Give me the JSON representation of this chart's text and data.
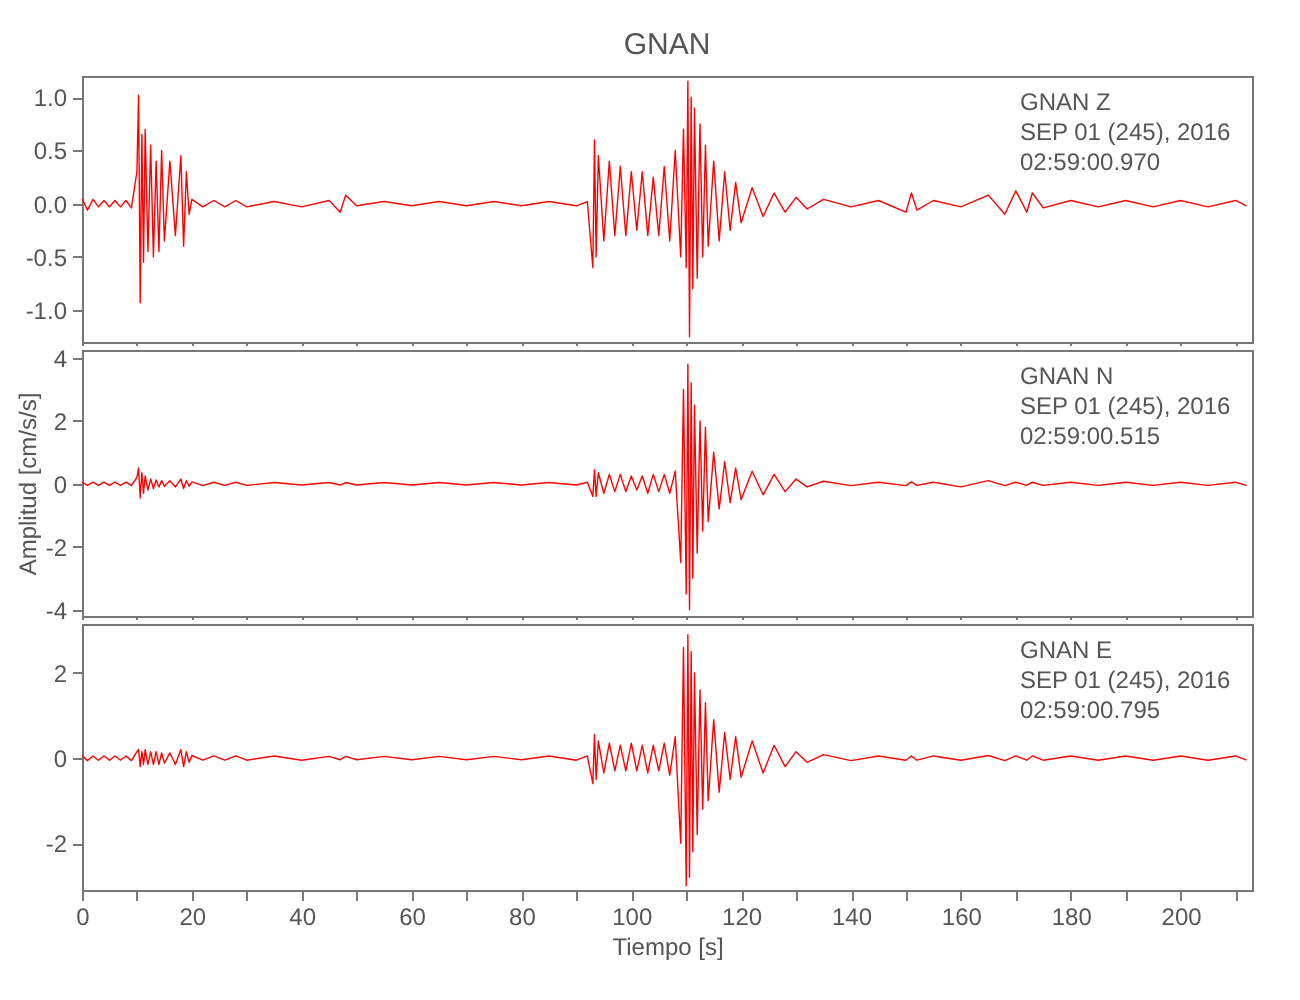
{
  "chart_data": [
    {
      "type": "line",
      "title": "GNAN",
      "annotations": [
        "GNAN   Z",
        "SEP 01 (245), 2016",
        "02:59:00.970"
      ],
      "tick_labels": "y",
      "xlim": [
        0,
        213
      ],
      "xticks": [
        0,
        {
          "value": 10,
          "label": null
        },
        {
          "value": 20,
          "label": null
        },
        {
          "value": 30,
          "label": null
        },
        {
          "value": 40,
          "label": null
        },
        {
          "value": 50,
          "label": null
        },
        {
          "value": 60,
          "label": null
        },
        {
          "value": 70,
          "label": null
        },
        {
          "value": 80,
          "label": null
        },
        {
          "value": 90,
          "label": null
        },
        {
          "value": 100,
          "label": null
        },
        {
          "value": 110,
          "label": null
        },
        {
          "value": 120,
          "label": null
        },
        {
          "value": 130,
          "label": null
        },
        {
          "value": 140,
          "label": null
        },
        {
          "value": 150,
          "label": null
        },
        {
          "value": 160,
          "label": null
        },
        {
          "value": 170,
          "label": null
        },
        {
          "value": 180,
          "label": null
        },
        {
          "value": 190,
          "label": null
        },
        {
          "value": 200,
          "label": null
        },
        {
          "value": 210,
          "label": null
        }
      ],
      "ylim": [
        -1.3,
        1.2
      ],
      "yticks": [
        {
          "value": -1,
          "label": "-1.0"
        },
        -0.5,
        {
          "value": 0,
          "label": "0.0"
        },
        0.5,
        {
          "value": 1,
          "label": "1.0"
        }
      ],
      "x": [
        0,
        1,
        2,
        3,
        4,
        5,
        6,
        7,
        8,
        9,
        10,
        10.3,
        10.6,
        10.9,
        11.2,
        11.5,
        12,
        12.5,
        13,
        13.5,
        14,
        14.5,
        15,
        16,
        17,
        18,
        18.5,
        19,
        19.5,
        20,
        22,
        24,
        26,
        28,
        30,
        35,
        40,
        45,
        47,
        48,
        50,
        55,
        60,
        65,
        70,
        75,
        80,
        85,
        90,
        92,
        93,
        93.3,
        93.6,
        94,
        95,
        96,
        97,
        98,
        99,
        100,
        101,
        102,
        103,
        104,
        105,
        106,
        107,
        108,
        109,
        109.5,
        110,
        110.3,
        110.6,
        110.9,
        111.2,
        111.5,
        112,
        112.5,
        113,
        113.5,
        114,
        115,
        116,
        117,
        118,
        119,
        120,
        122,
        124,
        126,
        128,
        130,
        132,
        135,
        140,
        145,
        150,
        151,
        152,
        155,
        160,
        165,
        168,
        170,
        172,
        173,
        175,
        180,
        185,
        190,
        195,
        200,
        205,
        210,
        212
      ],
      "series": [
        {
          "color": "#ff0000",
          "values": [
            0.05,
            -0.06,
            0.04,
            -0.03,
            0.03,
            -0.03,
            0.03,
            -0.03,
            0.03,
            -0.04,
            0.3,
            1.02,
            -0.93,
            0.65,
            -0.55,
            0.7,
            -0.45,
            0.55,
            -0.5,
            0.4,
            -0.45,
            0.5,
            -0.35,
            0.4,
            -0.3,
            0.45,
            -0.4,
            0.3,
            -0.1,
            0.04,
            -0.03,
            0.03,
            -0.03,
            0.03,
            -0.03,
            0.02,
            -0.03,
            0.03,
            -0.08,
            0.08,
            -0.02,
            0.02,
            -0.02,
            0.02,
            -0.02,
            0.02,
            -0.02,
            0.02,
            -0.02,
            0.02,
            -0.6,
            0.6,
            -0.5,
            0.45,
            -0.35,
            0.4,
            -0.3,
            0.35,
            -0.3,
            0.3,
            -0.25,
            0.3,
            -0.3,
            0.25,
            -0.3,
            0.35,
            -0.35,
            0.5,
            -0.5,
            0.7,
            -0.6,
            1.15,
            -1.25,
            1.0,
            -0.8,
            0.9,
            -0.7,
            0.75,
            -0.5,
            0.55,
            -0.4,
            0.4,
            -0.35,
            0.3,
            -0.25,
            0.2,
            -0.18,
            0.15,
            -0.12,
            0.1,
            -0.08,
            0.06,
            -0.05,
            0.04,
            -0.03,
            0.03,
            -0.08,
            0.1,
            -0.06,
            0.03,
            -0.03,
            0.08,
            -0.1,
            0.12,
            -0.08,
            0.1,
            -0.04,
            0.03,
            -0.03,
            0.03,
            -0.03,
            0.03,
            -0.03,
            0.03,
            -0.02
          ]
        }
      ]
    },
    {
      "type": "line",
      "ylabel": "Amplitud [cm/s/s]",
      "annotations": [
        "GNAN   N",
        "SEP 01 (245), 2016",
        "02:59:00.515"
      ],
      "tick_labels": "y",
      "xlim": [
        0,
        213
      ],
      "xticks": [
        0,
        {
          "value": 10,
          "label": null
        },
        {
          "value": 20,
          "label": null
        },
        {
          "value": 30,
          "label": null
        },
        {
          "value": 40,
          "label": null
        },
        {
          "value": 50,
          "label": null
        },
        {
          "value": 60,
          "label": null
        },
        {
          "value": 70,
          "label": null
        },
        {
          "value": 80,
          "label": null
        },
        {
          "value": 90,
          "label": null
        },
        {
          "value": 100,
          "label": null
        },
        {
          "value": 110,
          "label": null
        },
        {
          "value": 120,
          "label": null
        },
        {
          "value": 130,
          "label": null
        },
        {
          "value": 140,
          "label": null
        },
        {
          "value": 150,
          "label": null
        },
        {
          "value": 160,
          "label": null
        },
        {
          "value": 170,
          "label": null
        },
        {
          "value": 180,
          "label": null
        },
        {
          "value": 190,
          "label": null
        },
        {
          "value": 200,
          "label": null
        },
        {
          "value": 210,
          "label": null
        }
      ],
      "ylim": [
        -4.2,
        4.25
      ],
      "yticks": [
        -4,
        -2,
        0,
        2,
        4
      ],
      "x": [
        0,
        1,
        2,
        3,
        4,
        5,
        6,
        7,
        8,
        9,
        10,
        10.3,
        10.6,
        10.9,
        11.2,
        11.5,
        12,
        12.5,
        13,
        13.5,
        14,
        14.5,
        15,
        16,
        17,
        18,
        18.5,
        19,
        19.5,
        20,
        22,
        24,
        26,
        28,
        30,
        35,
        40,
        45,
        47,
        48,
        50,
        55,
        60,
        65,
        70,
        75,
        80,
        85,
        90,
        92,
        93,
        93.3,
        93.6,
        94,
        95,
        96,
        97,
        98,
        99,
        100,
        101,
        102,
        103,
        104,
        105,
        106,
        107,
        108,
        109,
        109.5,
        110,
        110.3,
        110.6,
        110.9,
        111.2,
        111.5,
        112,
        112.5,
        113,
        113.5,
        114,
        115,
        116,
        117,
        118,
        119,
        120,
        122,
        124,
        126,
        128,
        130,
        132,
        135,
        140,
        145,
        150,
        151,
        152,
        155,
        160,
        165,
        168,
        170,
        172,
        173,
        175,
        180,
        185,
        190,
        195,
        200,
        205,
        210,
        212
      ],
      "series": [
        {
          "color": "#ff0000",
          "values": [
            0.05,
            -0.05,
            0.05,
            -0.05,
            0.05,
            -0.05,
            0.05,
            -0.05,
            0.05,
            -0.05,
            0.2,
            0.5,
            -0.45,
            0.35,
            -0.3,
            0.25,
            -0.2,
            0.15,
            -0.15,
            0.12,
            -0.1,
            0.1,
            -0.08,
            0.1,
            -0.1,
            0.15,
            -0.15,
            0.1,
            -0.08,
            0.06,
            -0.06,
            0.05,
            -0.05,
            0.05,
            -0.05,
            0.04,
            -0.04,
            0.04,
            -0.04,
            0.04,
            -0.04,
            0.04,
            -0.04,
            0.04,
            -0.04,
            0.04,
            -0.04,
            0.04,
            -0.04,
            0.05,
            -0.4,
            0.45,
            -0.4,
            0.35,
            -0.3,
            0.3,
            -0.25,
            0.3,
            -0.25,
            0.25,
            -0.2,
            0.25,
            -0.3,
            0.3,
            -0.25,
            0.3,
            -0.3,
            0.4,
            -2.5,
            3.0,
            -3.5,
            3.8,
            -4.0,
            3.2,
            -3.0,
            2.5,
            -2.2,
            2.0,
            -1.5,
            1.8,
            -1.2,
            1.0,
            -0.8,
            0.7,
            -0.6,
            0.5,
            -0.5,
            0.4,
            -0.35,
            0.3,
            -0.25,
            0.15,
            -0.1,
            0.08,
            -0.06,
            0.05,
            -0.06,
            0.06,
            -0.05,
            0.05,
            -0.1,
            0.1,
            -0.06,
            0.05,
            -0.05,
            0.05,
            -0.05,
            0.05,
            -0.05,
            0.05,
            -0.05,
            0.05,
            -0.05,
            0.05,
            -0.05
          ]
        }
      ]
    },
    {
      "type": "line",
      "xlabel": "Tiempo [s]",
      "annotations": [
        "GNAN   E",
        "SEP 01 (245), 2016",
        "02:59:00.795"
      ],
      "xlim": [
        0,
        213
      ],
      "xticks": [
        0,
        {
          "value": 10,
          "label": null
        },
        20,
        {
          "value": 30,
          "label": null
        },
        40,
        {
          "value": 50,
          "label": null
        },
        60,
        {
          "value": 70,
          "label": null
        },
        80,
        {
          "value": 90,
          "label": null
        },
        100,
        {
          "value": 110,
          "label": null
        },
        120,
        {
          "value": 130,
          "label": null
        },
        140,
        {
          "value": 150,
          "label": null
        },
        160,
        {
          "value": 170,
          "label": null
        },
        180,
        {
          "value": 190,
          "label": null
        },
        200,
        {
          "value": 210,
          "label": null
        }
      ],
      "ylim": [
        -3.1,
        3.15
      ],
      "yticks": [
        -2,
        0,
        2
      ],
      "x": [
        0,
        1,
        2,
        3,
        4,
        5,
        6,
        7,
        8,
        9,
        10,
        10.3,
        10.6,
        10.9,
        11.2,
        11.5,
        12,
        12.5,
        13,
        13.5,
        14,
        14.5,
        15,
        16,
        17,
        18,
        18.5,
        19,
        19.5,
        20,
        22,
        24,
        26,
        28,
        30,
        35,
        40,
        45,
        47,
        48,
        50,
        55,
        60,
        65,
        70,
        75,
        80,
        85,
        90,
        92,
        93,
        93.3,
        93.6,
        94,
        95,
        96,
        97,
        98,
        99,
        100,
        101,
        102,
        103,
        104,
        105,
        106,
        107,
        108,
        109,
        109.5,
        110,
        110.3,
        110.6,
        110.9,
        111.2,
        111.5,
        112,
        112.5,
        113,
        113.5,
        114,
        115,
        116,
        117,
        118,
        119,
        120,
        122,
        124,
        126,
        128,
        130,
        132,
        135,
        140,
        145,
        150,
        151,
        152,
        155,
        160,
        165,
        168,
        170,
        172,
        173,
        175,
        180,
        185,
        190,
        195,
        200,
        205,
        210,
        212
      ],
      "series": [
        {
          "color": "#ff0000",
          "values": [
            0.06,
            -0.06,
            0.05,
            -0.05,
            0.05,
            -0.05,
            0.05,
            -0.05,
            0.05,
            -0.06,
            0.15,
            0.2,
            -0.2,
            0.15,
            -0.15,
            0.2,
            -0.15,
            0.15,
            -0.15,
            0.15,
            -0.15,
            0.12,
            -0.12,
            0.12,
            -0.15,
            0.2,
            -0.2,
            0.15,
            -0.1,
            0.06,
            -0.05,
            0.05,
            -0.05,
            0.05,
            -0.05,
            0.05,
            -0.05,
            0.04,
            -0.04,
            0.04,
            -0.04,
            0.04,
            -0.04,
            0.04,
            -0.04,
            0.04,
            -0.04,
            0.05,
            -0.05,
            0.05,
            -0.6,
            0.55,
            -0.5,
            0.4,
            -0.35,
            0.35,
            -0.3,
            0.3,
            -0.3,
            0.35,
            -0.3,
            0.3,
            -0.35,
            0.3,
            -0.3,
            0.35,
            -0.4,
            0.5,
            -2.0,
            2.6,
            -3.0,
            2.9,
            -2.8,
            2.5,
            -2.2,
            2.0,
            -1.8,
            1.6,
            -1.2,
            1.3,
            -1.0,
            0.9,
            -0.8,
            0.6,
            -0.5,
            0.5,
            -0.45,
            0.4,
            -0.35,
            0.3,
            -0.2,
            0.15,
            -0.1,
            0.08,
            -0.06,
            0.05,
            -0.05,
            0.05,
            -0.05,
            0.05,
            -0.05,
            0.06,
            -0.06,
            0.05,
            -0.05,
            0.05,
            -0.05,
            0.05,
            -0.05,
            0.05,
            -0.05,
            0.05,
            -0.05,
            0.05,
            -0.05
          ]
        }
      ]
    }
  ]
}
